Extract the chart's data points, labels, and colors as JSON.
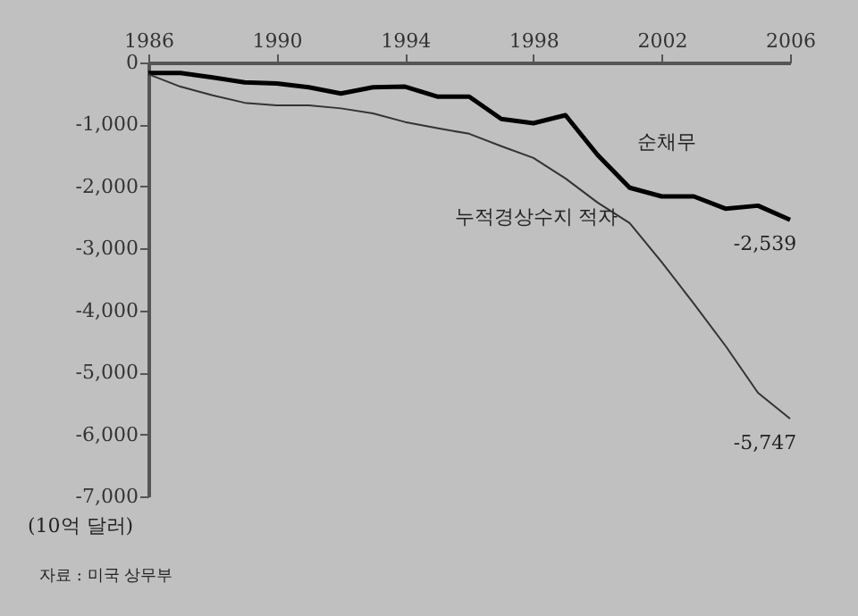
{
  "chart_data": {
    "type": "line",
    "x": [
      1986,
      1987,
      1988,
      1989,
      1990,
      1991,
      1992,
      1993,
      1994,
      1995,
      1996,
      1997,
      1998,
      1999,
      2000,
      2001,
      2002,
      2003,
      2004,
      2005,
      2006
    ],
    "series": [
      {
        "name": "순채무",
        "color": "#000000",
        "values": [
          -170,
          -170,
          -240,
          -320,
          -340,
          -400,
          -500,
          -400,
          -390,
          -550,
          -550,
          -910,
          -980,
          -850,
          -1490,
          -2020,
          -2160,
          -2160,
          -2360,
          -2310,
          -2539
        ]
      },
      {
        "name": "누적경상수지 적자",
        "color": "#333333",
        "values": [
          -190,
          -390,
          -530,
          -650,
          -690,
          -690,
          -740,
          -820,
          -960,
          -1060,
          -1150,
          -1350,
          -1540,
          -1870,
          -2260,
          -2590,
          -3220,
          -3890,
          -4580,
          -5330,
          -5747
        ]
      }
    ],
    "xlim": [
      1986,
      2006
    ],
    "xticks": [
      1986,
      1990,
      1994,
      1998,
      2002,
      2006
    ],
    "ylim": [
      -7000,
      0
    ],
    "yticks": [
      {
        "value": 0,
        "label": "0"
      },
      {
        "value": -1000,
        "label": "-1,000"
      },
      {
        "value": -2000,
        "label": "-2,000"
      },
      {
        "value": -3000,
        "label": "-3,000"
      },
      {
        "value": -4000,
        "label": "-4,000"
      },
      {
        "value": -5000,
        "label": "-5,000"
      },
      {
        "value": -6000,
        "label": "-6,000"
      },
      {
        "value": -7000,
        "label": "-7,000"
      }
    ],
    "ylabel": "(10억 달러)",
    "annotations": [
      {
        "text": "-2,539",
        "x": 2006,
        "y": -2539
      },
      {
        "text": "-5,747",
        "x": 2006,
        "y": -5747
      },
      "자료 : 미국 상무부"
    ],
    "grid": false,
    "marker": "none",
    "line_style": "solid"
  }
}
